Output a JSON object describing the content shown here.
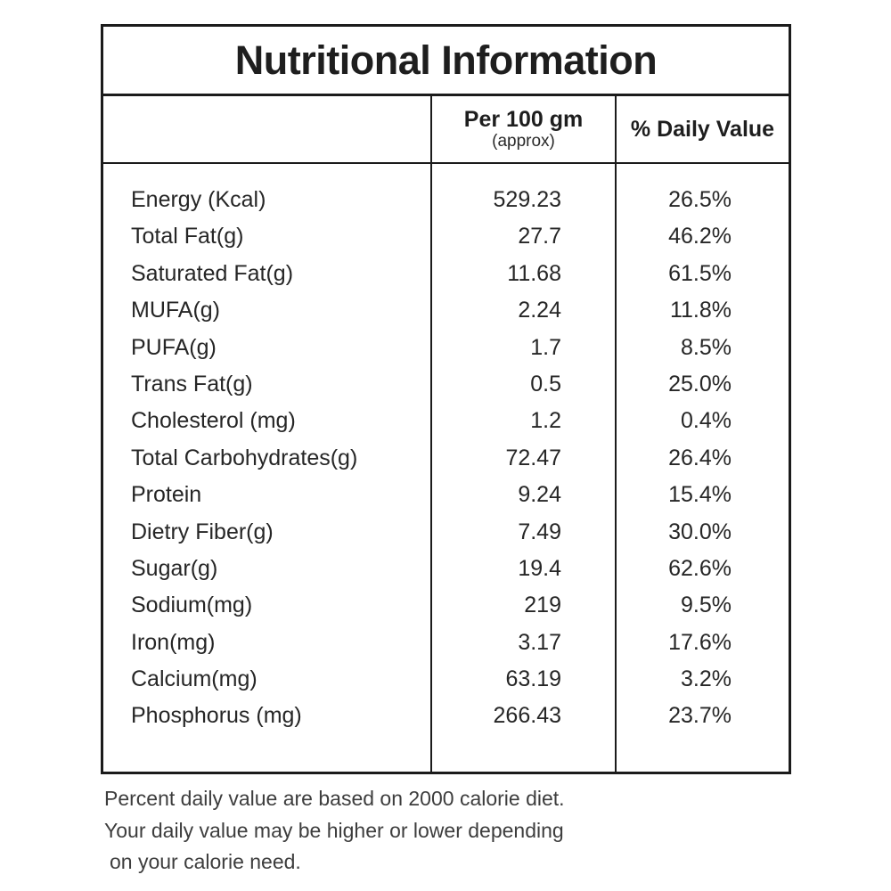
{
  "title": "Nutritional Information",
  "header": {
    "item_col": "",
    "per_col_line1": "Per 100 gm",
    "per_col_line2": "(approx)",
    "dv_col": "% Daily Value"
  },
  "rows": [
    {
      "label": "Energy (Kcal)",
      "per_100gm": "529.23",
      "daily_value": "26.5%"
    },
    {
      "label": "Total Fat(g)",
      "per_100gm": "27.7",
      "daily_value": "46.2%"
    },
    {
      "label": "Saturated Fat(g)",
      "per_100gm": "11.68",
      "daily_value": "61.5%"
    },
    {
      "label": "MUFA(g)",
      "per_100gm": "2.24",
      "daily_value": "11.8%"
    },
    {
      "label": "PUFA(g)",
      "per_100gm": "1.7",
      "daily_value": "8.5%"
    },
    {
      "label": "Trans Fat(g)",
      "per_100gm": "0.5",
      "daily_value": "25.0%"
    },
    {
      "label": "Cholesterol (mg)",
      "per_100gm": "1.2",
      "daily_value": "0.4%"
    },
    {
      "label": "Total Carbohydrates(g)",
      "per_100gm": "72.47",
      "daily_value": "26.4%"
    },
    {
      "label": "Protein",
      "per_100gm": "9.24",
      "daily_value": "15.4%"
    },
    {
      "label": "Dietry Fiber(g)",
      "per_100gm": "7.49",
      "daily_value": "30.0%"
    },
    {
      "label": "Sugar(g)",
      "per_100gm": "19.4",
      "daily_value": "62.6%"
    },
    {
      "label": "Sodium(mg)",
      "per_100gm": "219",
      "daily_value": "9.5%"
    },
    {
      "label": "Iron(mg)",
      "per_100gm": "3.17",
      "daily_value": "17.6%"
    },
    {
      "label": "Calcium(mg)",
      "per_100gm": "63.19",
      "daily_value": "3.2%"
    },
    {
      "label": "Phosphorus (mg)",
      "per_100gm": "266.43",
      "daily_value": "23.7%"
    }
  ],
  "footer": {
    "line1": "Percent daily value are based on 2000 calorie diet.",
    "line2": "Your daily value may be higher or lower depending",
    "line3": "on your calorie need."
  },
  "colors": {
    "border": "#1b1b1b",
    "title_text": "#1e1e1e",
    "body_text": "#262626",
    "footer_text": "#3d3d3d",
    "background": "#ffffff"
  }
}
